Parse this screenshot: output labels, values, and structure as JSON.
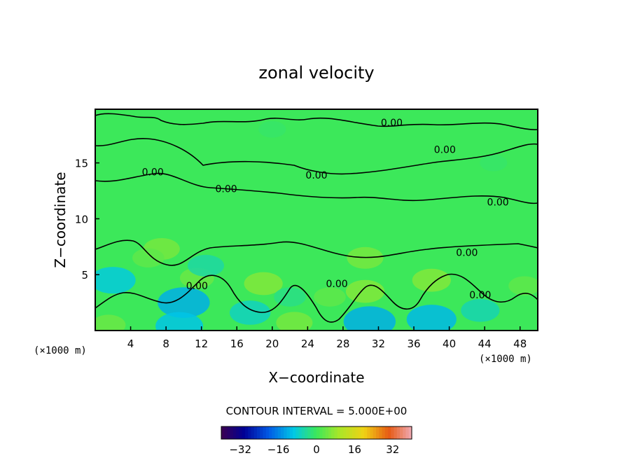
{
  "chart_data": {
    "type": "heatmap",
    "title": "zonal velocity",
    "xlabel": "X−coordinate",
    "ylabel": "Z−coordinate",
    "x_unit": "(×1000 m)",
    "y_unit": "(×1000 m)",
    "xlim": [
      0,
      50
    ],
    "ylim": [
      0,
      19.8
    ],
    "x_ticks": [
      4,
      8,
      12,
      16,
      20,
      24,
      28,
      32,
      36,
      40,
      44,
      48
    ],
    "y_ticks": [
      5,
      10,
      15
    ],
    "contour_interval_text": "CONTOUR INTERVAL = 5.000E+00",
    "contour_labels": [
      {
        "text": "0.00",
        "x": 33.5,
        "y": 18.6
      },
      {
        "text": "0.00",
        "x": 39.5,
        "y": 16.2
      },
      {
        "text": "0.00",
        "x": 6.5,
        "y": 14.2
      },
      {
        "text": "0.00",
        "x": 25.0,
        "y": 13.9
      },
      {
        "text": "0.00",
        "x": 14.8,
        "y": 12.7
      },
      {
        "text": "0.00",
        "x": 45.5,
        "y": 11.5
      },
      {
        "text": "0.00",
        "x": 42.0,
        "y": 7.0
      },
      {
        "text": "0.00",
        "x": 11.5,
        "y": 4.0
      },
      {
        "text": "0.00",
        "x": 27.3,
        "y": 4.2
      },
      {
        "text": "0.00",
        "x": 43.5,
        "y": 3.2
      }
    ],
    "colorbar": {
      "ticks": [
        "−32",
        "−16",
        "0",
        "16",
        "32"
      ],
      "min": -40,
      "max": 40
    },
    "field_features": [
      {
        "x": 7.5,
        "y": 7.3,
        "value": 5
      },
      {
        "x": 6.0,
        "y": 6.5,
        "value": 3
      },
      {
        "x": 11.5,
        "y": 4.7,
        "value": 4
      },
      {
        "x": 19.0,
        "y": 4.2,
        "value": 6
      },
      {
        "x": 22.5,
        "y": 0.7,
        "value": 5
      },
      {
        "x": 26.5,
        "y": 3.0,
        "value": 3
      },
      {
        "x": 30.5,
        "y": 3.5,
        "value": 6
      },
      {
        "x": 30.5,
        "y": 6.5,
        "value": 5
      },
      {
        "x": 38.0,
        "y": 4.5,
        "value": 6
      },
      {
        "x": 48.5,
        "y": 4.0,
        "value": 3
      },
      {
        "x": 1.5,
        "y": 0.5,
        "value": 4
      },
      {
        "x": 2.0,
        "y": 4.5,
        "value": -9
      },
      {
        "x": 10.0,
        "y": 2.5,
        "value": -12
      },
      {
        "x": 9.5,
        "y": 0.4,
        "value": -10
      },
      {
        "x": 12.5,
        "y": 5.8,
        "value": -5
      },
      {
        "x": 17.5,
        "y": 1.6,
        "value": -7
      },
      {
        "x": 31.0,
        "y": 0.8,
        "value": -12
      },
      {
        "x": 38.0,
        "y": 1.0,
        "value": -11
      },
      {
        "x": 43.5,
        "y": 1.8,
        "value": -6
      },
      {
        "x": 22.0,
        "y": 3.0,
        "value": -3
      },
      {
        "x": 20.0,
        "y": 18.0,
        "value": -1
      },
      {
        "x": 45.0,
        "y": 15.0,
        "value": -1
      }
    ]
  }
}
